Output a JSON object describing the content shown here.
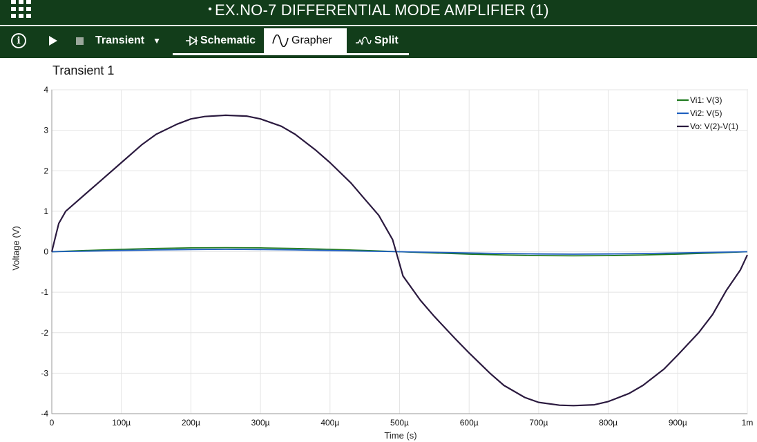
{
  "window": {
    "title": "EX.NO-7 DIFFERENTIAL MODE AMPLIFIER (1)",
    "title_dot": "•"
  },
  "toolbar": {
    "info_label": "i",
    "mode_label": "Transient",
    "tabs": [
      {
        "label": "Schematic",
        "icon": "diode-icon"
      },
      {
        "label": "Grapher",
        "icon": "sine-wave-icon",
        "active": true
      },
      {
        "label": "Split",
        "icon": "split-icon"
      }
    ]
  },
  "plot": {
    "title": "Transient 1"
  },
  "chart_data": {
    "type": "line",
    "xlabel": "Time (s)",
    "ylabel": "Voltage (V)",
    "xlim": [
      0,
      0.001
    ],
    "ylim": [
      -4,
      4
    ],
    "x_ticks": [
      0,
      0.0001,
      0.0002,
      0.0003,
      0.0004,
      0.0005,
      0.0006,
      0.0007,
      0.0008,
      0.0009,
      0.001
    ],
    "x_tick_labels": [
      "0",
      "100µ",
      "200µ",
      "300µ",
      "400µ",
      "500µ",
      "600µ",
      "700µ",
      "800µ",
      "900µ",
      "1m"
    ],
    "y_ticks": [
      -4,
      -3,
      -2,
      -1,
      0,
      1,
      2,
      3,
      4
    ],
    "y_tick_labels": [
      "-4",
      "-3",
      "-2",
      "-1",
      "0",
      "1",
      "2",
      "3",
      "4"
    ],
    "grid": true,
    "legend_position": "top-right",
    "series": [
      {
        "name": "Vi1: V(3)",
        "color": "#1f7a1f",
        "x": [
          0,
          5e-05,
          0.0001,
          0.00015,
          0.0002,
          0.00025,
          0.0003,
          0.00035,
          0.0004,
          0.00045,
          0.0005,
          0.00055,
          0.0006,
          0.00065,
          0.0007,
          0.00075,
          0.0008,
          0.00085,
          0.0009,
          0.00095,
          0.001
        ],
        "y": [
          0,
          0.03,
          0.06,
          0.08,
          0.095,
          0.1,
          0.095,
          0.08,
          0.06,
          0.03,
          0,
          -0.03,
          -0.06,
          -0.08,
          -0.095,
          -0.1,
          -0.095,
          -0.08,
          -0.06,
          -0.03,
          0
        ]
      },
      {
        "name": "Vi2: V(5)",
        "color": "#1f5fbf",
        "x": [
          0,
          5e-05,
          0.0001,
          0.00015,
          0.0002,
          0.00025,
          0.0003,
          0.00035,
          0.0004,
          0.00045,
          0.0005,
          0.00055,
          0.0006,
          0.00065,
          0.0007,
          0.00075,
          0.0008,
          0.00085,
          0.0009,
          0.00095,
          0.001
        ],
        "y": [
          0,
          0.015,
          0.03,
          0.045,
          0.055,
          0.06,
          0.055,
          0.045,
          0.03,
          0.015,
          0,
          -0.015,
          -0.03,
          -0.045,
          -0.055,
          -0.06,
          -0.055,
          -0.045,
          -0.03,
          -0.015,
          0
        ]
      },
      {
        "name": "Vo: V(2)-V(1)",
        "color": "#2b1a3f",
        "x": [
          0,
          5e-06,
          1e-05,
          2e-05,
          3e-05,
          5e-05,
          7e-05,
          0.0001,
          0.00013,
          0.00015,
          0.00018,
          0.0002,
          0.00022,
          0.00025,
          0.00028,
          0.0003,
          0.00033,
          0.00035,
          0.00038,
          0.0004,
          0.00043,
          0.00045,
          0.00047,
          0.00049,
          0.0005,
          0.000505,
          0.00053,
          0.00055,
          0.00058,
          0.0006,
          0.00063,
          0.00065,
          0.00068,
          0.0007,
          0.00073,
          0.00075,
          0.00078,
          0.0008,
          0.00083,
          0.00085,
          0.00088,
          0.0009,
          0.00093,
          0.00095,
          0.00097,
          0.00099,
          0.001
        ],
        "y": [
          0,
          0.35,
          0.7,
          1.0,
          1.15,
          1.45,
          1.75,
          2.2,
          2.65,
          2.9,
          3.15,
          3.28,
          3.34,
          3.37,
          3.35,
          3.28,
          3.1,
          2.9,
          2.5,
          2.2,
          1.7,
          1.3,
          0.9,
          0.3,
          -0.3,
          -0.6,
          -1.2,
          -1.6,
          -2.15,
          -2.5,
          -3.0,
          -3.3,
          -3.6,
          -3.72,
          -3.79,
          -3.8,
          -3.78,
          -3.7,
          -3.5,
          -3.3,
          -2.9,
          -2.55,
          -2.0,
          -1.55,
          -0.95,
          -0.45,
          -0.08
        ]
      }
    ]
  }
}
